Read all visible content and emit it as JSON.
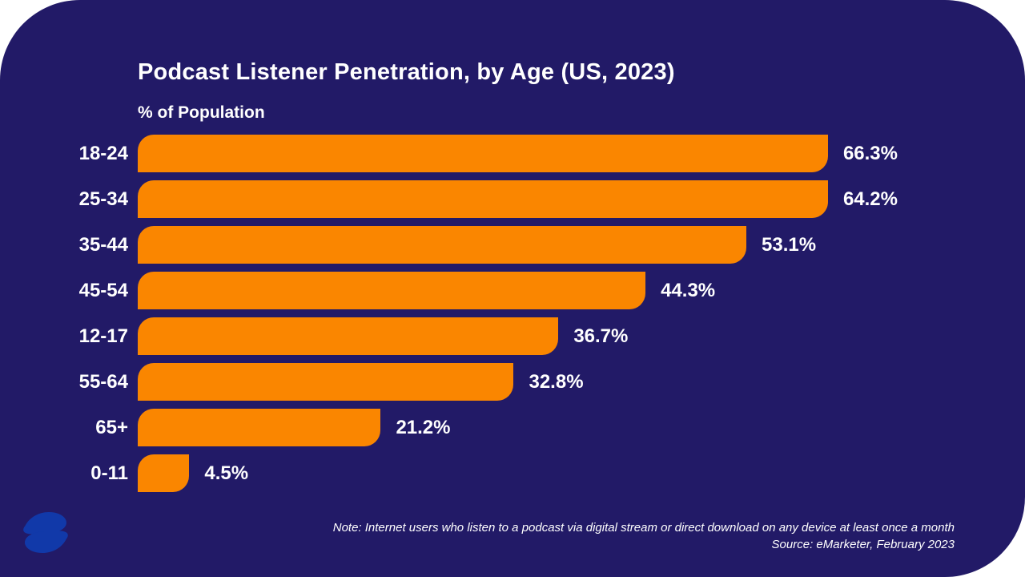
{
  "page": {
    "background": "#ffffff",
    "panel_color": "#221a67"
  },
  "chart_data": {
    "type": "bar",
    "orientation": "horizontal",
    "title": "Podcast Listener Penetration, by Age (US, 2023)",
    "xlabel": "% of Population",
    "ylabel": "",
    "categories": [
      "18-24",
      "25-34",
      "35-44",
      "45-54",
      "12-17",
      "55-64",
      "65+",
      "0-11"
    ],
    "values": [
      66.3,
      64.2,
      53.1,
      44.3,
      36.7,
      32.8,
      21.2,
      4.5
    ],
    "value_labels": [
      "66.3%",
      "64.2%",
      "53.1%",
      "44.3%",
      "36.7%",
      "32.8%",
      "21.2%",
      "4.5%"
    ],
    "xlim": [
      0,
      66.3
    ],
    "grid": false,
    "legend": false,
    "bar_color": "#fa8600",
    "text_color": "#ffffff"
  },
  "footer": {
    "note_line1": "Note: Internet users who listen to a podcast via digital stream or direct download on any device at least once a month",
    "note_line2": "Source: eMarketer, February 2023"
  },
  "branding": {
    "logo": "statista-s-logo",
    "logo_color": "#1139a9"
  }
}
